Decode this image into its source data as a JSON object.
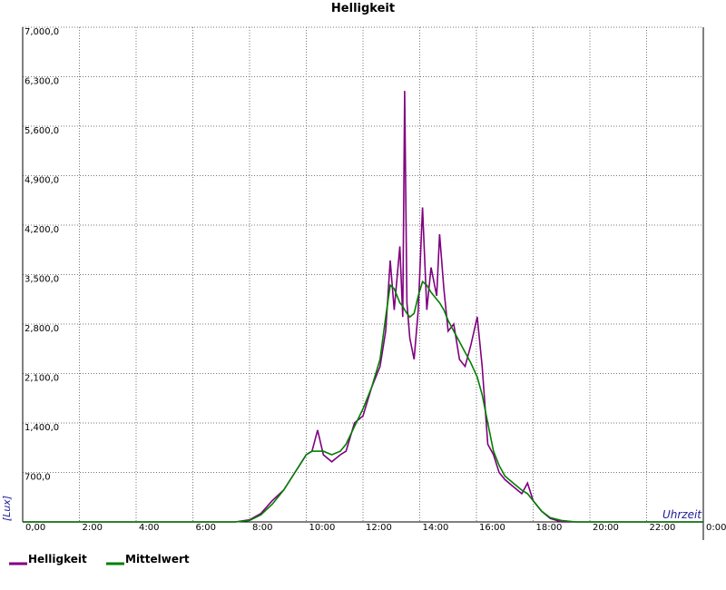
{
  "chart_data": {
    "type": "line",
    "title": "Helligkeit",
    "y_label": "[Lux]",
    "x_label": "Uhrzeit",
    "x": [
      0,
      7.5,
      8,
      8.4,
      8.8,
      9.2,
      9.6,
      10,
      10.2,
      10.4,
      10.6,
      10.9,
      11.2,
      11.4,
      11.7,
      12,
      12.3,
      12.6,
      12.8,
      12.96,
      13.1,
      13.3,
      13.4,
      13.47,
      13.55,
      13.65,
      13.8,
      13.95,
      14.1,
      14.25,
      14.4,
      14.6,
      14.7,
      14.85,
      15,
      15.2,
      15.4,
      15.6,
      15.8,
      16.03,
      16.2,
      16.4,
      16.6,
      16.8,
      17,
      17.3,
      17.6,
      17.8,
      18,
      18.3,
      18.6,
      19,
      19.5,
      24
    ],
    "series": [
      {
        "name": "Helligkeit",
        "color": "#800080",
        "values": [
          0,
          0,
          30,
          120,
          300,
          450,
          700,
          950,
          1000,
          1300,
          950,
          850,
          950,
          1000,
          1400,
          1500,
          1900,
          2200,
          2700,
          3700,
          3000,
          3900,
          2900,
          6100,
          3100,
          2600,
          2300,
          3000,
          4450,
          3000,
          3600,
          3200,
          4070,
          3300,
          2700,
          2800,
          2300,
          2200,
          2500,
          2900,
          2200,
          1100,
          950,
          700,
          600,
          500,
          400,
          550,
          300,
          150,
          50,
          0,
          0,
          0
        ]
      },
      {
        "name": "Mittelwert",
        "color": "#008000",
        "values": [
          0,
          0,
          20,
          100,
          250,
          450,
          700,
          950,
          1000,
          1000,
          1000,
          950,
          1000,
          1100,
          1350,
          1600,
          1900,
          2300,
          2900,
          3350,
          3300,
          3100,
          3050,
          3000,
          2950,
          2900,
          2950,
          3200,
          3400,
          3350,
          3250,
          3150,
          3100,
          3000,
          2850,
          2700,
          2550,
          2400,
          2250,
          2050,
          1800,
          1400,
          1000,
          800,
          650,
          550,
          450,
          400,
          300,
          150,
          60,
          20,
          0,
          0
        ]
      }
    ],
    "xlim": [
      0,
      24
    ],
    "ylim": [
      0,
      7000
    ],
    "xticks": [
      {
        "value": 0,
        "label": "0,00"
      },
      {
        "value": 2,
        "label": "2:00"
      },
      {
        "value": 4,
        "label": "4:00"
      },
      {
        "value": 6,
        "label": "6:00"
      },
      {
        "value": 8,
        "label": "8:00"
      },
      {
        "value": 10,
        "label": "10:00"
      },
      {
        "value": 12,
        "label": "12:00"
      },
      {
        "value": 14,
        "label": "14:00"
      },
      {
        "value": 16,
        "label": "16:00"
      },
      {
        "value": 18,
        "label": "18:00"
      },
      {
        "value": 20,
        "label": "20:00"
      },
      {
        "value": 22,
        "label": "22:00"
      },
      {
        "value": 24,
        "label": "0:00"
      }
    ],
    "yticks": [
      {
        "value": 700,
        "label": "700,0"
      },
      {
        "value": 1400,
        "label": "1,400,0"
      },
      {
        "value": 2100,
        "label": "2,100,0"
      },
      {
        "value": 2800,
        "label": "2,800,0"
      },
      {
        "value": 3500,
        "label": "3,500,0"
      },
      {
        "value": 4200,
        "label": "4,200,0"
      },
      {
        "value": 4900,
        "label": "4,900,0"
      },
      {
        "value": 5600,
        "label": "5,600,0"
      },
      {
        "value": 6300,
        "label": "6,300,0"
      },
      {
        "value": 7000,
        "label": "7,000,0"
      }
    ],
    "grid": true
  }
}
